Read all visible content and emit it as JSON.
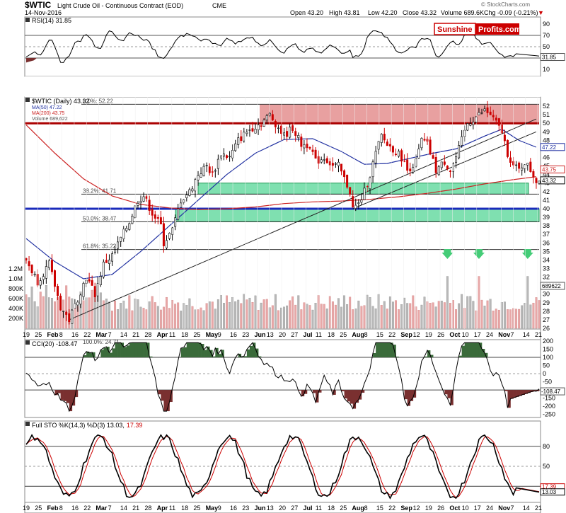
{
  "header": {
    "symbol": "$WTIC",
    "name": "Light Crude Oil - Continuous Contract (EOD)",
    "exchange": "CME",
    "date": "14-Nov-2016",
    "open": "Open 43.20",
    "high": "High 43.81",
    "low": "Low 42.20",
    "close": "Close 43.32",
    "volume": "Volume 689.6K",
    "chg": "Chg -0.09 (-0.21%)",
    "chg_arrow": "▼",
    "watermark": "© StockCharts.com"
  },
  "logo": {
    "left": "Sunshine",
    "right": "Profits.com"
  },
  "colors": {
    "up": "#000000",
    "down": "#cc0000",
    "ma50": "#1f2fa0",
    "ma200": "#cc2222",
    "zone_red": "#e8a0a0",
    "zone_green": "#7fe0b0",
    "volume_up": "#b8b8b8",
    "volume_down": "#e8a8a8",
    "cci_fill_pos": "#3a6b3a",
    "cci_fill_neg": "#7a3030",
    "arrow": "#44cc77"
  },
  "rsi_panel": {
    "label": "RSI(14) 31.85",
    "value_box": "31.85",
    "levels": [
      "90",
      "70",
      "50",
      "30",
      "10"
    ]
  },
  "cci_panel": {
    "label": "CCI(20) -108.47",
    "value_box": "-108.47",
    "levels": [
      "200",
      "150",
      "100",
      "50",
      "0",
      "-50",
      "-100",
      "-150",
      "-200",
      "-250"
    ]
  },
  "sto_panel": {
    "label": "Full STO %K(14,3) %D(3) 13.03, 17.39",
    "label_main": "Full STO %K(14,3) %D(3) 13.03,",
    "label_d": "17.39",
    "value_k": "13.03",
    "value_d": "17.39",
    "levels": [
      "80",
      "50",
      "20"
    ]
  },
  "price_panel": {
    "label": "$WTIC (Daily) 43.32",
    "legend": [
      "MA(50) 47.22",
      "MA(200) 43.75",
      "Volume 689,622"
    ],
    "y_labels": [
      "52",
      "51",
      "50",
      "49",
      "48",
      "47",
      "46",
      "45",
      "44",
      "43",
      "42",
      "41",
      "40",
      "39",
      "38",
      "37",
      "36",
      "35",
      "34",
      "33",
      "32",
      "31",
      "30",
      "29",
      "28",
      "27",
      "26"
    ],
    "volume_labels": [
      "1.2M",
      "1.0M",
      "800K",
      "600K",
      "400K",
      "200K"
    ],
    "right_boxes": {
      "ma50": "47.22",
      "ma200": "43.75",
      "close": "43.32",
      "volume": "689622"
    },
    "fibs": [
      {
        "label": "0.0%: 52.22",
        "value": 52.22
      },
      {
        "label": "38.2%: 41.71",
        "value": 41.71
      },
      {
        "label": "50.0%: 38.47",
        "value": 38.47
      },
      {
        "label": "61.8%: 35.22",
        "value": 35.22
      }
    ],
    "fib_cci_label": "100.0%: 24.71"
  },
  "x_axis": {
    "labels": [
      "19",
      "25",
      "Feb",
      "8",
      "16",
      "22",
      "Mar",
      "7",
      "14",
      "21",
      "28",
      "Apr",
      "11",
      "18",
      "25",
      "May",
      "9",
      "16",
      "23",
      "Jun",
      "13",
      "20",
      "27",
      "Jul",
      "11",
      "18",
      "25",
      "Aug",
      "8",
      "15",
      "22",
      "Sep",
      "12",
      "19",
      "26",
      "Oct",
      "10",
      "17",
      "24",
      "Nov",
      "7",
      "14",
      "21"
    ],
    "bold": [
      "Feb",
      "Mar",
      "Apr",
      "May",
      "Jun",
      "Jul",
      "Aug",
      "Sep",
      "Oct",
      "Nov"
    ]
  },
  "chart_data": {
    "type": "ohlc",
    "title": "$WTIC Light Crude Oil - Continuous Contract (EOD) daily",
    "price_range": [
      26,
      53
    ],
    "anchors": [
      [
        0,
        34.0
      ],
      [
        4,
        31.5
      ],
      [
        8,
        33.5
      ],
      [
        12,
        28.5
      ],
      [
        15,
        27.0
      ],
      [
        18,
        29.5
      ],
      [
        21,
        32.0
      ],
      [
        24,
        30.0
      ],
      [
        27,
        33.5
      ],
      [
        30,
        34.5
      ],
      [
        33,
        36.5
      ],
      [
        36,
        38.5
      ],
      [
        39,
        41.0
      ],
      [
        41,
        41.5
      ],
      [
        44,
        39.5
      ],
      [
        47,
        38.0
      ],
      [
        48,
        36.0
      ],
      [
        51,
        37.5
      ],
      [
        54,
        41.0
      ],
      [
        57,
        42.0
      ],
      [
        60,
        44.0
      ],
      [
        63,
        45.0
      ],
      [
        65,
        44.0
      ],
      [
        68,
        46.5
      ],
      [
        71,
        46.0
      ],
      [
        74,
        48.0
      ],
      [
        77,
        49.0
      ],
      [
        79,
        49.5
      ],
      [
        82,
        50.0
      ],
      [
        85,
        51.0
      ],
      [
        87,
        50.0
      ],
      [
        90,
        48.5
      ],
      [
        93,
        49.5
      ],
      [
        96,
        47.5
      ],
      [
        99,
        47.5
      ],
      [
        101,
        45.5
      ],
      [
        104,
        46.0
      ],
      [
        107,
        45.0
      ],
      [
        109,
        45.0
      ],
      [
        111,
        43.5
      ],
      [
        113,
        42.0
      ],
      [
        114,
        40.0
      ],
      [
        116,
        40.5
      ],
      [
        118,
        42.0
      ],
      [
        120,
        44.0
      ],
      [
        122,
        46.5
      ],
      [
        124,
        48.5
      ],
      [
        126,
        47.5
      ],
      [
        128,
        47.0
      ],
      [
        131,
        46.0
      ],
      [
        133,
        44.5
      ],
      [
        136,
        45.5
      ],
      [
        138,
        48.0
      ],
      [
        140,
        47.5
      ],
      [
        143,
        44.5
      ],
      [
        146,
        45.5
      ],
      [
        148,
        44.5
      ],
      [
        150,
        46.0
      ],
      [
        152,
        48.0
      ],
      [
        154,
        50.0
      ],
      [
        156,
        50.5
      ],
      [
        158,
        51.0
      ],
      [
        160,
        51.5
      ],
      [
        162,
        51.0
      ],
      [
        164,
        50.0
      ],
      [
        166,
        49.0
      ],
      [
        168,
        46.5
      ],
      [
        170,
        45.0
      ],
      [
        172,
        44.5
      ],
      [
        174,
        45.5
      ],
      [
        176,
        44.5
      ],
      [
        178,
        43.3
      ]
    ],
    "ma50": [
      [
        0,
        36.5
      ],
      [
        10,
        33.8
      ],
      [
        20,
        31.8
      ],
      [
        30,
        32.3
      ],
      [
        40,
        35.0
      ],
      [
        50,
        38.0
      ],
      [
        60,
        41.0
      ],
      [
        70,
        44.0
      ],
      [
        80,
        46.5
      ],
      [
        90,
        48.1
      ],
      [
        100,
        48.2
      ],
      [
        110,
        46.7
      ],
      [
        118,
        45.2
      ],
      [
        126,
        45.3
      ],
      [
        134,
        45.9
      ],
      [
        142,
        46.5
      ],
      [
        150,
        47.0
      ],
      [
        160,
        48.5
      ],
      [
        166,
        49.3
      ],
      [
        172,
        48.0
      ],
      [
        178,
        47.2
      ]
    ],
    "ma200": [
      [
        0,
        49.8
      ],
      [
        10,
        46.5
      ],
      [
        20,
        43.5
      ],
      [
        30,
        41.5
      ],
      [
        40,
        40.5
      ],
      [
        50,
        40.1
      ],
      [
        60,
        39.9
      ],
      [
        70,
        40.0
      ],
      [
        80,
        40.2
      ],
      [
        90,
        40.6
      ],
      [
        100,
        40.8
      ],
      [
        110,
        40.9
      ],
      [
        120,
        41.1
      ],
      [
        130,
        41.4
      ],
      [
        140,
        41.8
      ],
      [
        150,
        42.3
      ],
      [
        160,
        42.9
      ],
      [
        170,
        43.4
      ],
      [
        178,
        43.75
      ]
    ],
    "red_zone": [
      50.0,
      52.22
    ],
    "green_zones": [
      [
        41.71,
        43.0
      ],
      [
        38.47,
        40.0
      ]
    ],
    "horizontal_lines": [
      52.22,
      50.0,
      41.71,
      40.0,
      38.47,
      35.22
    ],
    "blue_support": 40.0,
    "trendline": [
      [
        15,
        27.0
      ],
      [
        178,
        50.5
      ]
    ],
    "trendline2": [
      [
        114,
        40.0
      ],
      [
        178,
        49.0
      ]
    ],
    "volume_arrows_index": [
      147,
      158,
      175
    ],
    "rsi_current": 31.85,
    "cci_current": -108.47,
    "sto_k_current": 13.03,
    "sto_d_current": 17.39
  }
}
